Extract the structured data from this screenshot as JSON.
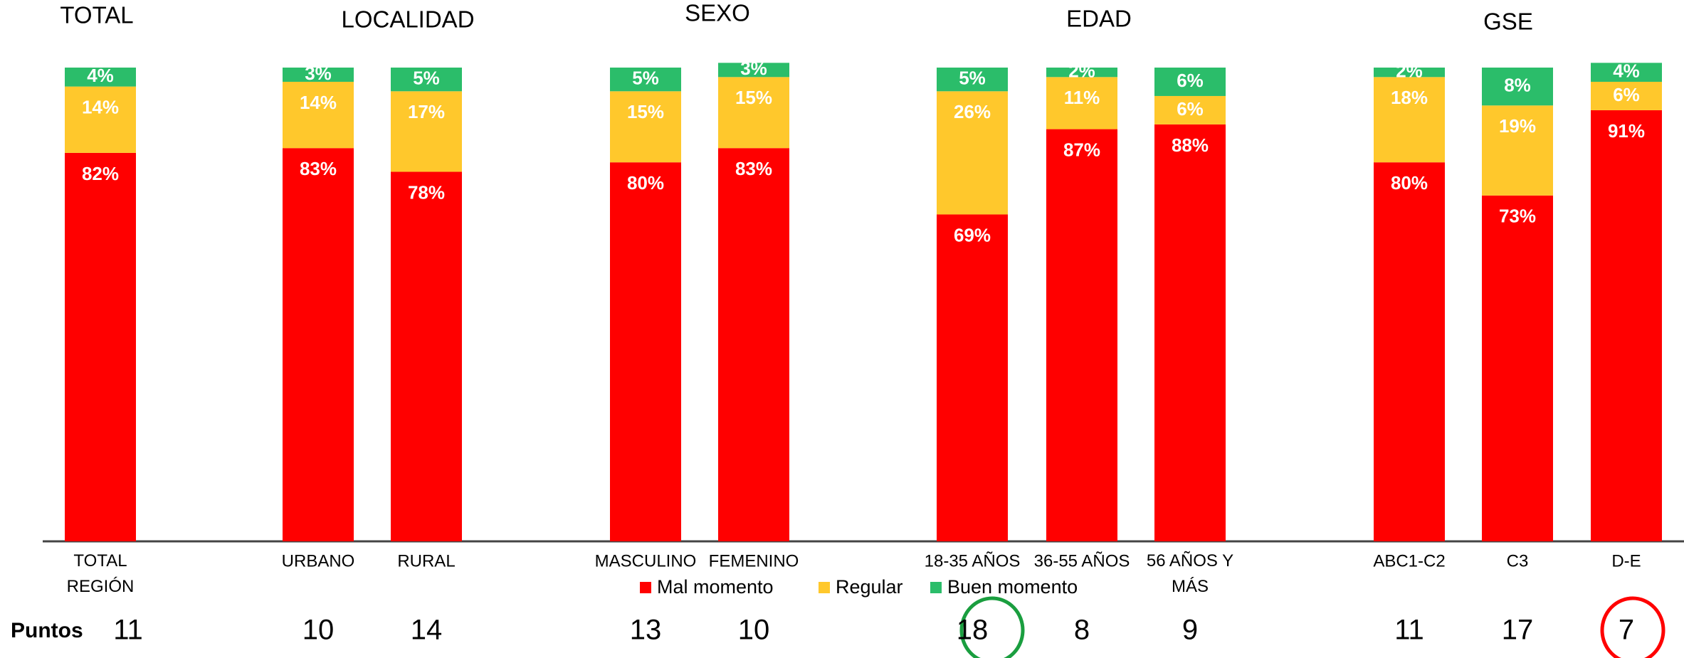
{
  "chart_data": {
    "type": "stacked_bar",
    "group_titles": [
      "TOTAL",
      "LOCALIDAD",
      "SEXO",
      "EDAD",
      "GSE"
    ],
    "categories": [
      "TOTAL\nREGIÓN",
      "URBANO",
      "RURAL",
      "MASCULINO",
      "FEMENINO",
      "18-35 AÑOS",
      "36-55 AÑOS",
      "56 AÑOS Y\nMÁS",
      "ABC1-C2",
      "C3",
      "D-E"
    ],
    "series": [
      {
        "name": "Mal momento",
        "color": "#ff0000",
        "values": [
          82,
          83,
          78,
          80,
          83,
          69,
          87,
          88,
          80,
          73,
          91
        ],
        "value_labels": [
          "82%",
          "83%",
          "78%",
          "80%",
          "83%",
          "69%",
          "87%",
          "88%",
          "80%",
          "73%",
          "91%"
        ]
      },
      {
        "name": "Regular",
        "color": "#ffc82c",
        "values": [
          14,
          14,
          17,
          15,
          15,
          26,
          11,
          6,
          18,
          19,
          6
        ],
        "value_labels": [
          "14%",
          "14%",
          "17%",
          "15%",
          "15%",
          "26%",
          "11%",
          "6%",
          "18%",
          "19%",
          "6%"
        ]
      },
      {
        "name": "Buen momento",
        "color": "#2bbd6a",
        "values": [
          4,
          3,
          5,
          5,
          3,
          5,
          2,
          6,
          2,
          8,
          4
        ],
        "value_labels": [
          "4%",
          "3%",
          "5%",
          "5%",
          "3%",
          "5%",
          "2%",
          "6%",
          "2%",
          "8%",
          "4%"
        ]
      }
    ],
    "ylim": [
      0,
      100
    ],
    "puntos": {
      "label": "Puntos",
      "values": [
        11,
        10,
        14,
        13,
        10,
        18,
        8,
        9,
        11,
        17,
        7
      ]
    }
  }
}
